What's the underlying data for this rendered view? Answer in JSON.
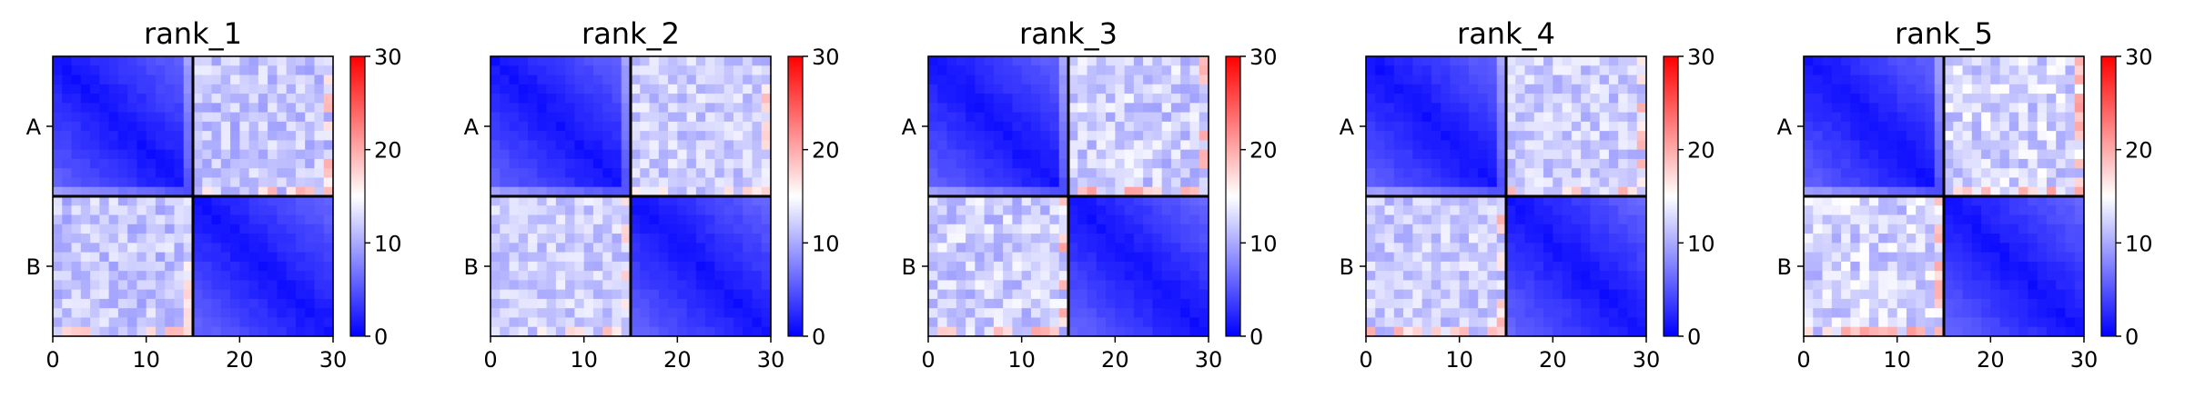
{
  "chart_data": [
    {
      "type": "heatmap",
      "title": "rank_1",
      "x_range": [
        0,
        30
      ],
      "x_ticks": [
        "0",
        "10",
        "20",
        "30"
      ],
      "y_ticks": [
        "A",
        "B"
      ],
      "colorbar": {
        "colormap": "bwr",
        "range": [
          0,
          30
        ],
        "ticks": [
          "0",
          "10",
          "20",
          "30"
        ]
      },
      "block_divider_at": 15,
      "grid_size": 30,
      "estimate": {
        "diag_block_min": 1,
        "diag_block_max": 6,
        "offdiag_mean": 11.5,
        "offdiag_spread": 2.4,
        "offdiag_hot_max": 20
      }
    },
    {
      "type": "heatmap",
      "title": "rank_2",
      "x_range": [
        0,
        30
      ],
      "x_ticks": [
        "0",
        "10",
        "20",
        "30"
      ],
      "y_ticks": [
        "A",
        "B"
      ],
      "colorbar": {
        "colormap": "bwr",
        "range": [
          0,
          30
        ],
        "ticks": [
          "0",
          "10",
          "20",
          "30"
        ]
      },
      "block_divider_at": 15,
      "grid_size": 30,
      "estimate": {
        "diag_block_min": 1,
        "diag_block_max": 6,
        "offdiag_mean": 12,
        "offdiag_spread": 2.2,
        "offdiag_hot_max": 19
      }
    },
    {
      "type": "heatmap",
      "title": "rank_3",
      "x_range": [
        0,
        30
      ],
      "x_ticks": [
        "0",
        "10",
        "20",
        "30"
      ],
      "y_ticks": [
        "A",
        "B"
      ],
      "colorbar": {
        "colormap": "bwr",
        "range": [
          0,
          30
        ],
        "ticks": [
          "0",
          "10",
          "20",
          "30"
        ]
      },
      "block_divider_at": 15,
      "grid_size": 30,
      "estimate": {
        "diag_block_min": 1,
        "diag_block_max": 6,
        "offdiag_mean": 12,
        "offdiag_spread": 2.6,
        "offdiag_hot_max": 21
      }
    },
    {
      "type": "heatmap",
      "title": "rank_4",
      "x_range": [
        0,
        30
      ],
      "x_ticks": [
        "0",
        "10",
        "20",
        "30"
      ],
      "y_ticks": [
        "A",
        "B"
      ],
      "colorbar": {
        "colormap": "bwr",
        "range": [
          0,
          30
        ],
        "ticks": [
          "0",
          "10",
          "20",
          "30"
        ]
      },
      "block_divider_at": 15,
      "grid_size": 30,
      "estimate": {
        "diag_block_min": 1,
        "diag_block_max": 6,
        "offdiag_mean": 12,
        "offdiag_spread": 2.3,
        "offdiag_hot_max": 20
      }
    },
    {
      "type": "heatmap",
      "title": "rank_5",
      "x_range": [
        0,
        30
      ],
      "x_ticks": [
        "0",
        "10",
        "20",
        "30"
      ],
      "y_ticks": [
        "A",
        "B"
      ],
      "colorbar": {
        "colormap": "bwr",
        "range": [
          0,
          30
        ],
        "ticks": [
          "0",
          "10",
          "20",
          "30"
        ]
      },
      "block_divider_at": 15,
      "grid_size": 30,
      "estimate": {
        "diag_block_min": 1,
        "diag_block_max": 6,
        "offdiag_mean": 12.5,
        "offdiag_spread": 2.8,
        "offdiag_hot_max": 21
      }
    }
  ]
}
